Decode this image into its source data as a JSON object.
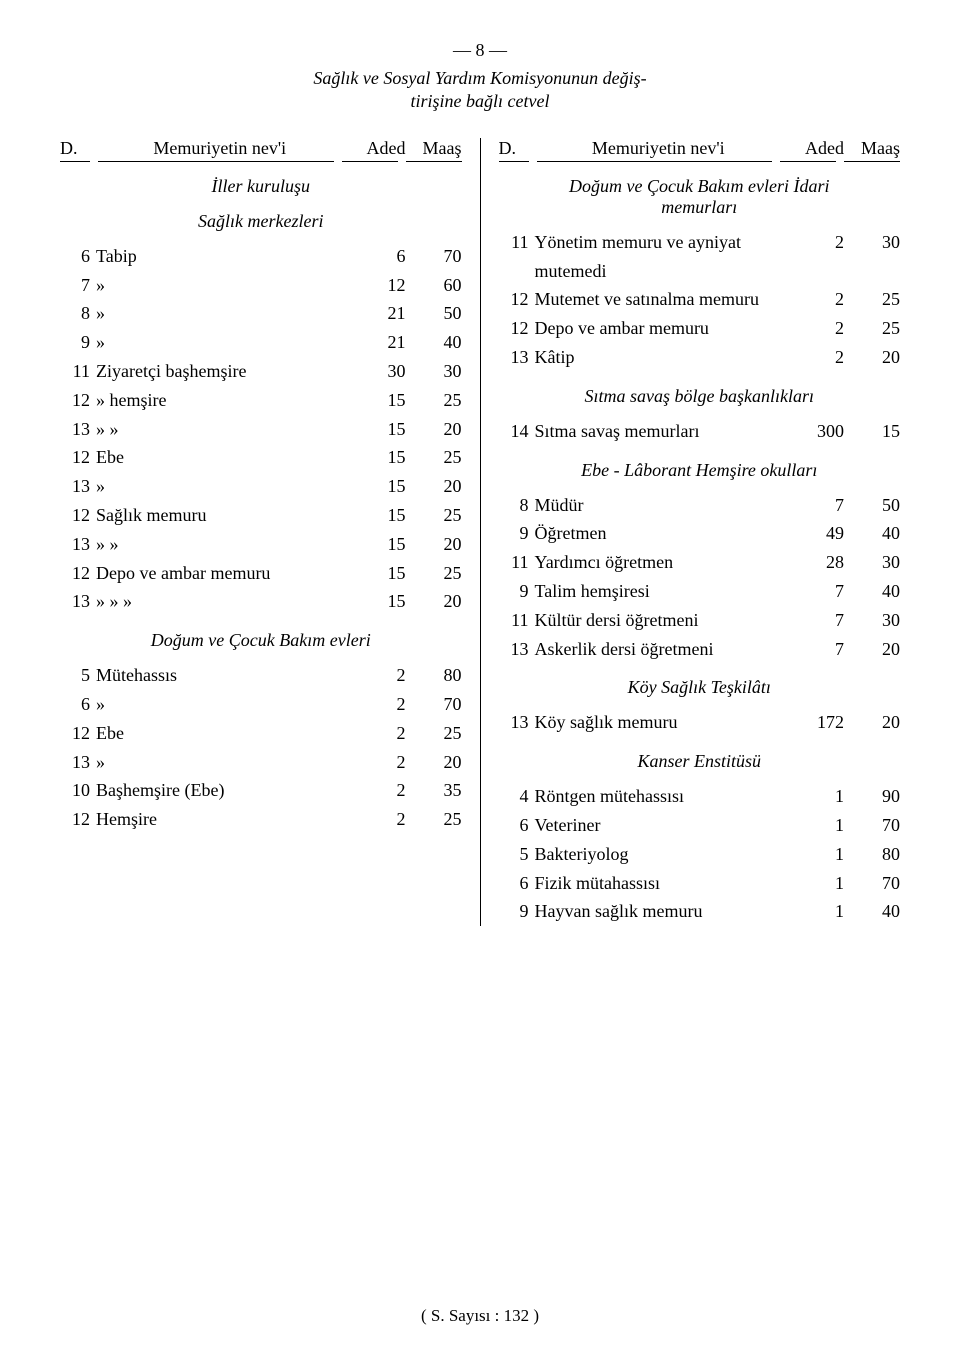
{
  "page_number_line": "— 8 —",
  "title_line1": "Sağlık ve Sosyal Yardım Komisyonunun değiş-",
  "title_line2": "tirişine bağlı cetvel",
  "header_D": "D.",
  "header_name": "Memuriyetin nev'i",
  "header_aded": "Aded",
  "header_maas": "Maaş",
  "footer": "( S. Sayısı : 132 )",
  "left": {
    "sec1": "İller kuruluşu",
    "sec2": "Sağlık merkezleri",
    "rows1": [
      {
        "d": "6",
        "n": "Tabip",
        "a": "6",
        "m": "70"
      },
      {
        "d": "7",
        "n": "»",
        "a": "12",
        "m": "60"
      },
      {
        "d": "8",
        "n": "»",
        "a": "21",
        "m": "50"
      },
      {
        "d": "9",
        "n": "»",
        "a": "21",
        "m": "40"
      },
      {
        "d": "11",
        "n": "Ziyaretçi başhemşire",
        "a": "30",
        "m": "30"
      },
      {
        "d": "12",
        "n": "»       hemşire",
        "a": "15",
        "m": "25"
      },
      {
        "d": "13",
        "n": "»       »",
        "a": "15",
        "m": "20"
      },
      {
        "d": "12",
        "n": "Ebe",
        "a": "15",
        "m": "25"
      },
      {
        "d": "13",
        "n": "»",
        "a": "15",
        "m": "20"
      },
      {
        "d": "12",
        "n": "Sağlık   memuru",
        "a": "15",
        "m": "25"
      },
      {
        "d": "13",
        "n": "»       »",
        "a": "15",
        "m": "20"
      },
      {
        "d": "12",
        "n": "Depo ve ambar memuru",
        "a": "15",
        "m": "25"
      },
      {
        "d": "13",
        "n": "»       »       »",
        "a": "15",
        "m": "20"
      }
    ],
    "sec3": "Doğum ve Çocuk Bakım evleri",
    "rows2": [
      {
        "d": "5",
        "n": "Mütehassıs",
        "a": "2",
        "m": "80"
      },
      {
        "d": "6",
        "n": "»",
        "a": "2",
        "m": "70"
      },
      {
        "d": "12",
        "n": "Ebe",
        "a": "2",
        "m": "25"
      },
      {
        "d": "13",
        "n": "»",
        "a": "2",
        "m": "20"
      },
      {
        "d": "10",
        "n": "Başhemşire (Ebe)",
        "a": "2",
        "m": "35"
      },
      {
        "d": "12",
        "n": "Hemşire",
        "a": "2",
        "m": "25"
      }
    ]
  },
  "right": {
    "sec1_l1": "Doğum ve Çocuk Bakım evleri İdari",
    "sec1_l2": "memurları",
    "rows1": [
      {
        "d": "11",
        "n": "Yönetim memuru ve ayniyat mutemedi",
        "a": "2",
        "m": "30"
      },
      {
        "d": "12",
        "n": "Mutemet ve satınalma memuru",
        "a": "2",
        "m": "25"
      },
      {
        "d": "12",
        "n": "Depo ve ambar memuru",
        "a": "2",
        "m": "25"
      },
      {
        "d": "13",
        "n": "Kâtip",
        "a": "2",
        "m": "20"
      }
    ],
    "sec2": "Sıtma savaş bölge başkanlıkları",
    "rows2": [
      {
        "d": "14",
        "n": "Sıtma savaş memurları",
        "a": "300",
        "m": "15"
      }
    ],
    "sec3": "Ebe - Lâborant Hemşire okulları",
    "rows3": [
      {
        "d": "8",
        "n": "Müdür",
        "a": "7",
        "m": "50"
      },
      {
        "d": "9",
        "n": "Öğretmen",
        "a": "49",
        "m": "40"
      },
      {
        "d": "11",
        "n": "Yardımcı öğretmen",
        "a": "28",
        "m": "30"
      },
      {
        "d": "9",
        "n": "Talim hemşiresi",
        "a": "7",
        "m": "40"
      },
      {
        "d": "11",
        "n": "Kültür dersi öğretmeni",
        "a": "7",
        "m": "30"
      },
      {
        "d": "13",
        "n": "Askerlik dersi öğretmeni",
        "a": "7",
        "m": "20"
      }
    ],
    "sec4": "Köy Sağlık Teşkilâtı",
    "rows4": [
      {
        "d": "13",
        "n": "Köy sağlık memuru",
        "a": "172",
        "m": "20"
      }
    ],
    "sec5": "Kanser Enstitüsü",
    "rows5": [
      {
        "d": "4",
        "n": "Röntgen mütehassısı",
        "a": "1",
        "m": "90"
      },
      {
        "d": "6",
        "n": "Veteriner",
        "a": "1",
        "m": "70"
      },
      {
        "d": "5",
        "n": "Bakteriyolog",
        "a": "1",
        "m": "80"
      },
      {
        "d": "6",
        "n": "Fizik mütahassısı",
        "a": "1",
        "m": "70"
      },
      {
        "d": "9",
        "n": "Hayvan sağlık memuru",
        "a": "1",
        "m": "40"
      }
    ]
  }
}
